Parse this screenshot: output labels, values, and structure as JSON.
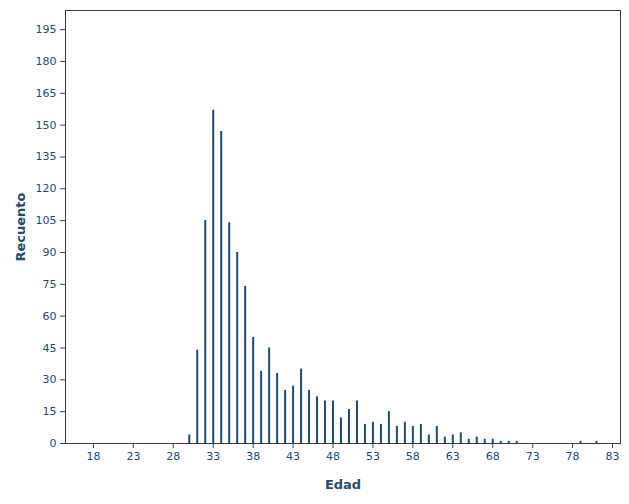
{
  "chart_data": {
    "type": "bar",
    "x_label": "Edad",
    "y_label": "Recuento",
    "x": [
      30,
      31,
      32,
      33,
      34,
      35,
      36,
      37,
      38,
      39,
      40,
      41,
      42,
      43,
      44,
      45,
      46,
      47,
      48,
      49,
      50,
      51,
      52,
      53,
      54,
      55,
      56,
      57,
      58,
      59,
      60,
      61,
      62,
      63,
      64,
      65,
      66,
      67,
      68,
      69,
      70,
      71,
      79,
      81
    ],
    "values": [
      4,
      44,
      105,
      157,
      147,
      104,
      90,
      74,
      50,
      34,
      45,
      33,
      25,
      27,
      35,
      25,
      22,
      20,
      20,
      12,
      16,
      20,
      9,
      10,
      9,
      15,
      8,
      10,
      8,
      9,
      4,
      8,
      3,
      4,
      5,
      2,
      3,
      2,
      2,
      1,
      1,
      1,
      1,
      1
    ],
    "color": "#1f4a73",
    "xlim": [
      14.5,
      84
    ],
    "xticks": [
      18,
      23,
      28,
      33,
      38,
      43,
      48,
      53,
      58,
      63,
      68,
      73,
      78,
      83
    ],
    "ylim": [
      0,
      204
    ],
    "yticks": [
      0,
      15,
      30,
      45,
      60,
      75,
      90,
      105,
      120,
      135,
      150,
      165,
      180,
      195
    ],
    "grid": false
  }
}
